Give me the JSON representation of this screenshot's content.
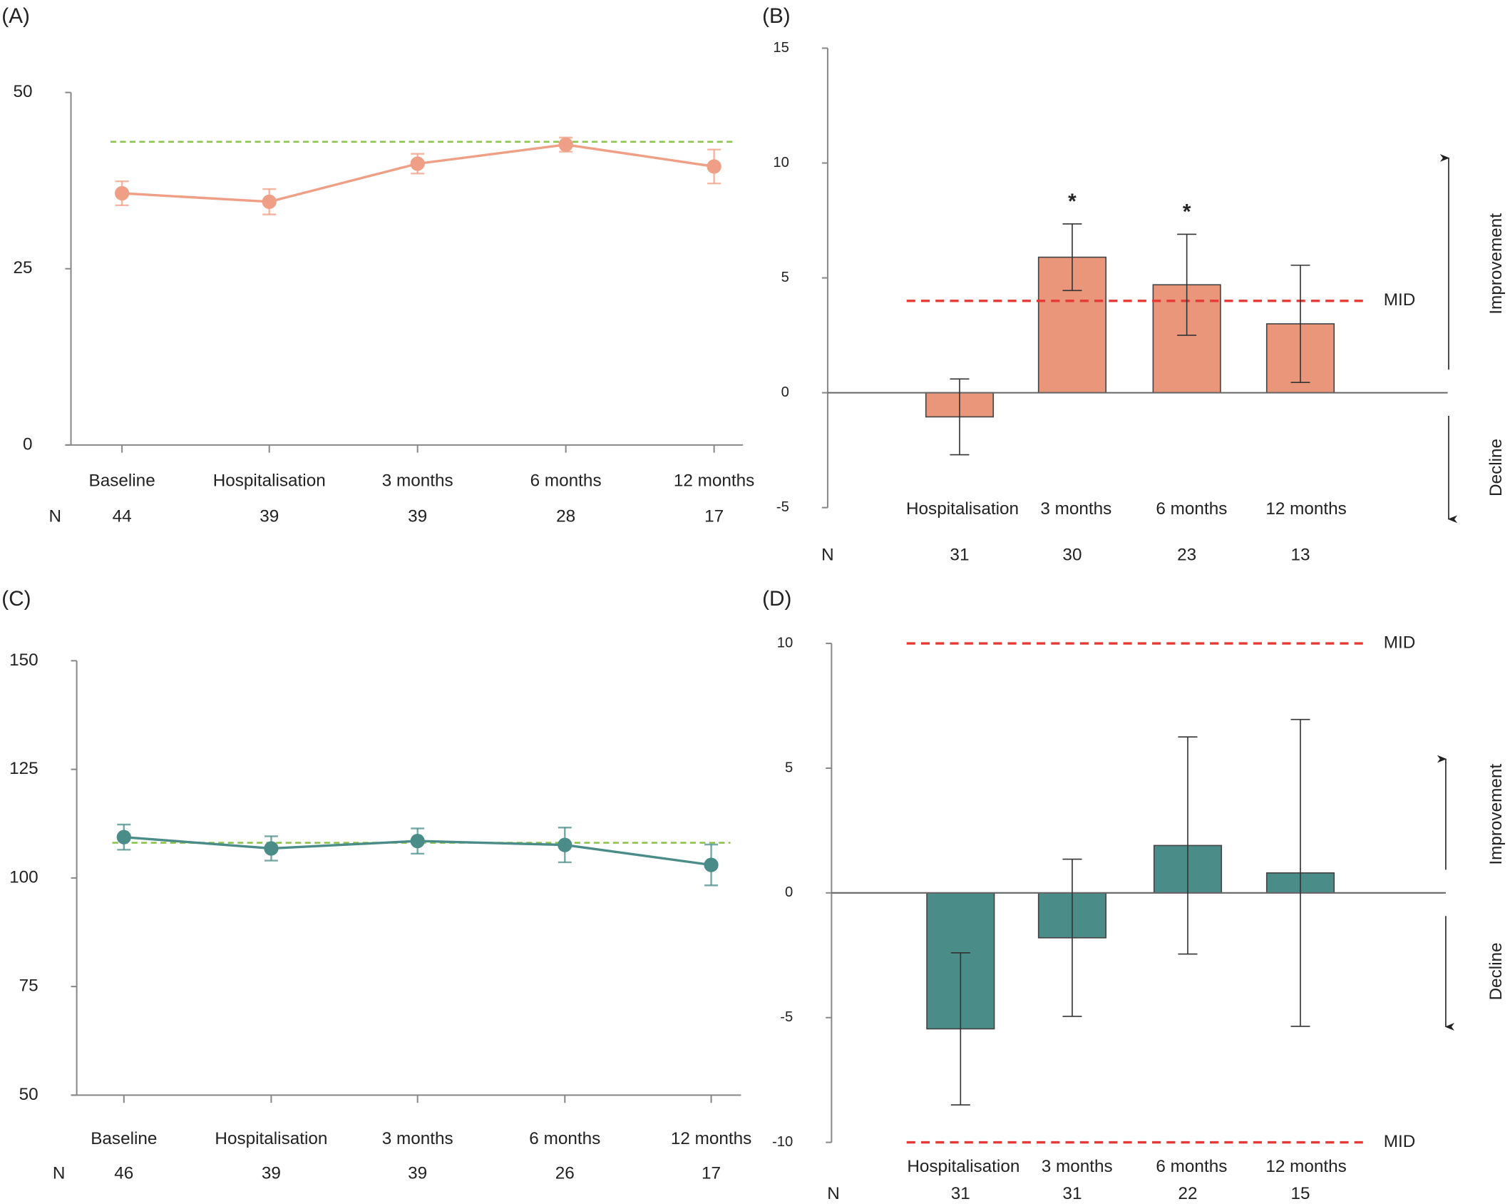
{
  "chart_data": [
    {
      "type": "line",
      "panel_label": "(A)",
      "categories": [
        "Baseline",
        "Hospitalisation",
        "3 months",
        "6 months",
        "12 months"
      ],
      "values": [
        35.7,
        34.5,
        39.9,
        42.6,
        39.5
      ],
      "errors": [
        1.7,
        1.8,
        1.4,
        1.0,
        2.4
      ],
      "color": "#ef9f85",
      "reference_line": {
        "value": 43,
        "color": "#8dc44d"
      },
      "ylim": [
        0,
        50
      ],
      "yticks": [
        0,
        25,
        50
      ],
      "n_label": "N",
      "n_values": [
        44,
        39,
        39,
        28,
        17
      ]
    },
    {
      "type": "bar",
      "panel_label": "(B)",
      "categories": [
        "Hospitalisation",
        "3 months",
        "6 months",
        "12 months"
      ],
      "values": [
        -1.05,
        5.9,
        4.7,
        3.0
      ],
      "errors": [
        1.65,
        1.45,
        2.2,
        2.55
      ],
      "color": "#e9967a",
      "markers": [
        null,
        "*",
        "*",
        null
      ],
      "reference_lines": [
        {
          "value": 4,
          "label": "MID"
        }
      ],
      "reference_color": "#e53935",
      "ylim": [
        -5,
        15
      ],
      "yticks": [
        -5,
        0,
        5,
        10,
        15
      ],
      "improvement_label": "Improvement",
      "decline_label": "Decline",
      "n_label": "N",
      "n_values": [
        31,
        30,
        23,
        13
      ]
    },
    {
      "type": "line",
      "panel_label": "(C)",
      "categories": [
        "Baseline",
        "Hospitalisation",
        "3 months",
        "6 months",
        "12 months"
      ],
      "values": [
        109.4,
        106.8,
        108.5,
        107.6,
        103
      ],
      "errors": [
        2.9,
        2.8,
        2.9,
        4.0,
        4.7
      ],
      "color": "#4a8c88",
      "reference_line": {
        "value": 108.1,
        "color": "#8dc44d"
      },
      "ylim": [
        50,
        150
      ],
      "yticks": [
        50,
        75,
        100,
        125,
        150
      ],
      "n_label": "N",
      "n_values": [
        46,
        39,
        39,
        26,
        17
      ]
    },
    {
      "type": "bar",
      "panel_label": "(D)",
      "categories": [
        "Hospitalisation",
        "3 months",
        "6 months",
        "12 months"
      ],
      "values": [
        -5.45,
        -1.8,
        1.9,
        0.8
      ],
      "errors": [
        3.05,
        3.15,
        4.35,
        6.15
      ],
      "color": "#4a8c88",
      "reference_lines": [
        {
          "value": 10,
          "label": "MID"
        },
        {
          "value": -10,
          "label": "MID"
        }
      ],
      "reference_color": "#e53935",
      "ylim": [
        -10,
        10
      ],
      "yticks": [
        -10,
        -5,
        0,
        5,
        10
      ],
      "improvement_label": "Improvement",
      "decline_label": "Decline",
      "n_label": "N",
      "n_values": [
        31,
        31,
        22,
        15
      ]
    }
  ]
}
